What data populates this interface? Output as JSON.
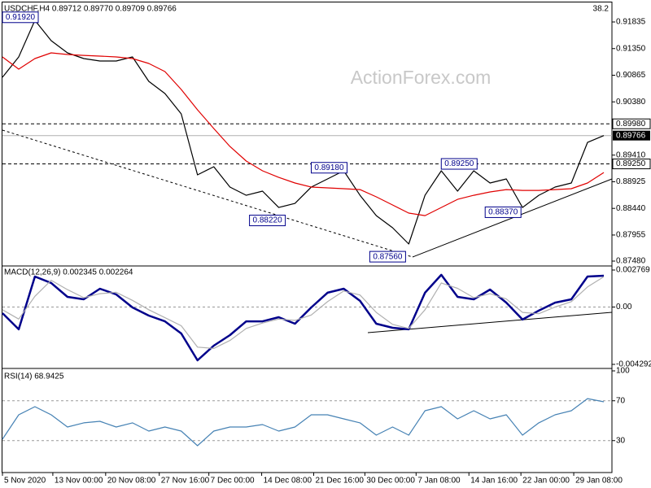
{
  "chart_data": [
    {
      "type": "line",
      "title": "USDCHF,H4 0.89712 0.89770 0.89709 0.89766",
      "watermark": "ActionForex.com",
      "corner_label": "38.2",
      "xlim": [
        0,
        37.5
      ],
      "xticks": [
        {
          "value": 0,
          "label": "5 Nov 2020"
        },
        {
          "value": 3.1,
          "label": "13 Nov 00:00"
        },
        {
          "value": 6.35,
          "label": "20 Nov 08:00"
        },
        {
          "value": 9.65,
          "label": "27 Nov 16:00"
        },
        {
          "value": 12.7,
          "label": "7 Dec 00:00"
        },
        {
          "value": 15.95,
          "label": "14 Dec 08:00"
        },
        {
          "value": 19.15,
          "label": "21 Dec 16:00"
        },
        {
          "value": 22.3,
          "label": "30 Dec 00:00"
        },
        {
          "value": 25.45,
          "label": "7 Jan 08:00"
        },
        {
          "value": 28.7,
          "label": "14 Jan 16:00"
        },
        {
          "value": 31.9,
          "label": "22 Jan 00:00"
        },
        {
          "value": 35.15,
          "label": "29 Jan 08:00"
        }
      ],
      "ylim": [
        0.87421,
        0.92161
      ],
      "yticks": [
        0.91835,
        {
          "value": 0.9135,
          "label": "0.91350"
        },
        0.90865,
        {
          "value": 0.9038,
          "label": "0.90380"
        },
        {
          "value": 0.8941,
          "label": "0.89410"
        },
        0.88925,
        {
          "value": 0.8844,
          "label": "0.88440"
        },
        0.87955,
        {
          "value": 0.8748,
          "label": "0.87480"
        }
      ],
      "grid": false,
      "series": [
        {
          "color": "#000000",
          "values": [
            0.90828,
            0.91198,
            0.91865,
            0.91494,
            0.91272,
            0.91168,
            0.91124,
            0.91124,
            0.91198,
            0.90754,
            0.90531,
            0.90161,
            0.8905,
            0.89198,
            0.88828,
            0.88679,
            0.88754,
            0.88457,
            0.88531,
            0.88828,
            0.88976,
            0.89124,
            0.88679,
            0.88309,
            0.88087,
            0.87791,
            0.88679,
            0.89124,
            0.88754,
            0.89124,
            0.88902,
            0.88976,
            0.88457,
            0.88679,
            0.88828,
            0.88902,
            0.89642,
            0.89766
          ]
        },
        {
          "color": "#e00000",
          "values": [
            0.91198,
            0.90976,
            0.91168,
            0.91272,
            0.91242,
            0.91227,
            0.91213,
            0.91198,
            0.91168,
            0.91079,
            0.90931,
            0.90605,
            0.90235,
            0.89894,
            0.89568,
            0.89302,
            0.89124,
            0.89005,
            0.88902,
            0.88828,
            0.88813,
            0.88798,
            0.88783,
            0.8865,
            0.88502,
            0.88354,
            0.88309,
            0.88457,
            0.88605,
            0.88679,
            0.88739,
            0.88783,
            0.88768,
            0.88768,
            0.88783,
            0.88798,
            0.88902,
            0.89094
          ]
        }
      ],
      "annotations": [
        {
          "x": 0,
          "value": 0.9192,
          "label": "0.91920"
        },
        {
          "x": 19,
          "value": 0.8918,
          "label": "0.89180"
        },
        {
          "x": 15.2,
          "value": 0.8822,
          "label": "0.88220"
        },
        {
          "x": 27,
          "value": 0.8925,
          "label": "0.89250"
        },
        {
          "x": 29.7,
          "value": 0.8837,
          "label": "0.88370"
        },
        {
          "x": 22.6,
          "value": 0.8756,
          "label": "0.87560"
        }
      ],
      "hlines": [
        {
          "value": 0.8998,
          "label": "0.89980"
        },
        {
          "value": 0.8925,
          "label": "0.89250"
        }
      ],
      "last": {
        "value": 0.89766,
        "label": "0.89766"
      }
    },
    {
      "type": "line",
      "title": "MACD(12,26,9) 0.002345 0.002264",
      "ylim": [
        -0.004292,
        0.002769
      ],
      "yticks": [
        0.002769,
        {
          "value": 0,
          "label": "0.00"
        },
        -0.004292
      ],
      "grid": true,
      "series": [
        {
          "color": "#00008b",
          "values": [
            -0.00046,
            -0.00167,
            0.00228,
            0.0018,
            0.00076,
            0.00058,
            0.00137,
            0.00094,
            -3e-05,
            -0.00064,
            -0.00107,
            -0.00198,
            -0.00399,
            -0.00289,
            -0.0021,
            -0.00107,
            -0.00107,
            -0.00076,
            -0.00125,
            -3e-05,
            0.00107,
            0.00137,
            0.00046,
            -0.00125,
            -0.00155,
            -0.00167,
            0.00107,
            0.00241,
            0.00076,
            0.00058,
            0.00131,
            0.00033,
            -0.00094,
            -0.00027,
            0.00033,
            0.00058,
            0.00228,
            0.002345
          ]
        },
        {
          "color": "#b0b0b0",
          "values": [
            -0.0002,
            -0.0009,
            0.0008,
            0.002,
            0.0013,
            0.0007,
            0.001,
            0.0011,
            0.0005,
            -0.0002,
            -0.0008,
            -0.0014,
            -0.003,
            -0.0031,
            -0.0025,
            -0.0016,
            -0.0012,
            -0.0009,
            -0.001,
            -0.0006,
            0.0004,
            0.0012,
            0.0009,
            -0.0004,
            -0.0013,
            -0.0016,
            -0.0002,
            0.0018,
            0.0014,
            0.0007,
            0.001,
            0.0006,
            -0.0004,
            -0.0005,
            0,
            0.0004,
            0.0015,
            0.002264
          ]
        }
      ]
    },
    {
      "type": "line",
      "title": "RSI(14) 68.9425",
      "ylim": [
        0,
        100
      ],
      "yticks": [
        100,
        70,
        30
      ],
      "grid": true,
      "series": [
        {
          "color": "#4682b4",
          "values": [
            31.4,
            55.9,
            64.1,
            55.9,
            43.7,
            47.8,
            49.4,
            43.7,
            47.8,
            39.6,
            43.7,
            39.6,
            24.9,
            39.6,
            43.7,
            43.7,
            46.1,
            39.6,
            43.7,
            55.9,
            55.9,
            51.8,
            47.8,
            35.5,
            43.7,
            35.5,
            60.0,
            64.1,
            51.8,
            60.0,
            51.8,
            55.9,
            35.5,
            47.8,
            55.9,
            60.0,
            72.2,
            68.9425
          ]
        }
      ]
    }
  ]
}
